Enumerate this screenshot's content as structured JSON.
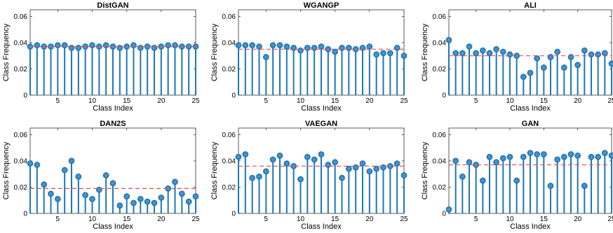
{
  "chart_data": [
    {
      "type": "stem",
      "title": "DistGAN",
      "xlabel": "Class Index",
      "ylabel": "Class Frequency",
      "xlim": [
        1,
        25
      ],
      "ylim": [
        0,
        0.065
      ],
      "xticks": [
        5,
        10,
        15,
        20,
        25
      ],
      "yticks": [
        0,
        0.02,
        0.04,
        0.06
      ],
      "ytick_labels": [
        "0",
        "0.02",
        "0.04",
        "0.06"
      ],
      "reference_line": 0.037,
      "x": [
        1,
        2,
        3,
        4,
        5,
        6,
        7,
        8,
        9,
        10,
        11,
        12,
        13,
        14,
        15,
        16,
        17,
        18,
        19,
        20,
        21,
        22,
        23,
        24,
        25
      ],
      "values": [
        0.037,
        0.038,
        0.037,
        0.037,
        0.038,
        0.038,
        0.036,
        0.036,
        0.037,
        0.038,
        0.037,
        0.038,
        0.037,
        0.036,
        0.037,
        0.038,
        0.036,
        0.037,
        0.036,
        0.037,
        0.038,
        0.038,
        0.037,
        0.037,
        0.037
      ]
    },
    {
      "type": "stem",
      "title": "WGANGP",
      "xlabel": "Class Index",
      "ylabel": "Class Frequency",
      "xlim": [
        1,
        25
      ],
      "ylim": [
        0,
        0.065
      ],
      "xticks": [
        5,
        10,
        15,
        20,
        25
      ],
      "yticks": [
        0,
        0.02,
        0.04,
        0.06
      ],
      "ytick_labels": [
        "0",
        "0.02",
        "0.04",
        "0.06"
      ],
      "reference_line": 0.035,
      "x": [
        1,
        2,
        3,
        4,
        5,
        6,
        7,
        8,
        9,
        10,
        11,
        12,
        13,
        14,
        15,
        16,
        17,
        18,
        19,
        20,
        21,
        22,
        23,
        24,
        25
      ],
      "values": [
        0.038,
        0.038,
        0.038,
        0.037,
        0.029,
        0.038,
        0.038,
        0.037,
        0.036,
        0.034,
        0.036,
        0.036,
        0.037,
        0.035,
        0.033,
        0.036,
        0.036,
        0.035,
        0.036,
        0.037,
        0.031,
        0.032,
        0.032,
        0.036,
        0.03
      ]
    },
    {
      "type": "stem",
      "title": "ALI",
      "xlabel": "Class Index",
      "ylabel": "Class Frequency",
      "xlim": [
        1,
        25
      ],
      "ylim": [
        0,
        0.065
      ],
      "xticks": [
        5,
        10,
        15,
        20,
        25
      ],
      "yticks": [
        0,
        0.02,
        0.04,
        0.06
      ],
      "ytick_labels": [
        "0",
        "0.02",
        "0.04",
        "0.06"
      ],
      "reference_line": 0.03,
      "x": [
        1,
        2,
        3,
        4,
        5,
        6,
        7,
        8,
        9,
        10,
        11,
        12,
        13,
        14,
        15,
        16,
        17,
        18,
        19,
        20,
        21,
        22,
        23,
        24,
        25
      ],
      "values": [
        0.042,
        0.032,
        0.032,
        0.037,
        0.032,
        0.034,
        0.032,
        0.035,
        0.033,
        0.031,
        0.03,
        0.014,
        0.017,
        0.028,
        0.021,
        0.029,
        0.033,
        0.021,
        0.029,
        0.023,
        0.034,
        0.031,
        0.031,
        0.032,
        0.024
      ]
    },
    {
      "type": "stem",
      "title": "DAN2S",
      "xlabel": "Class Index",
      "ylabel": "Class Frequency",
      "xlim": [
        1,
        25
      ],
      "ylim": [
        0,
        0.065
      ],
      "xticks": [
        5,
        10,
        15,
        20,
        25
      ],
      "yticks": [
        0,
        0.02,
        0.04,
        0.06
      ],
      "ytick_labels": [
        "0",
        "0.02",
        "0.04",
        "0.06"
      ],
      "reference_line": 0.019,
      "x": [
        1,
        2,
        3,
        4,
        5,
        6,
        7,
        8,
        9,
        10,
        11,
        12,
        13,
        14,
        15,
        16,
        17,
        18,
        19,
        20,
        21,
        22,
        23,
        24,
        25
      ],
      "values": [
        0.038,
        0.037,
        0.022,
        0.015,
        0.011,
        0.033,
        0.04,
        0.028,
        0.014,
        0.011,
        0.018,
        0.029,
        0.023,
        0.006,
        0.013,
        0.008,
        0.011,
        0.009,
        0.008,
        0.012,
        0.019,
        0.024,
        0.015,
        0.009,
        0.013
      ]
    },
    {
      "type": "stem",
      "title": "VAEGAN",
      "xlabel": "Class Index",
      "ylabel": "Class Frequency",
      "xlim": [
        1,
        25
      ],
      "ylim": [
        0,
        0.065
      ],
      "xticks": [
        5,
        10,
        15,
        20,
        25
      ],
      "yticks": [
        0,
        0.02,
        0.04,
        0.06
      ],
      "ytick_labels": [
        "0",
        "0.02",
        "0.04",
        "0.06"
      ],
      "reference_line": 0.036,
      "x": [
        1,
        2,
        3,
        4,
        5,
        6,
        7,
        8,
        9,
        10,
        11,
        12,
        13,
        14,
        15,
        16,
        17,
        18,
        19,
        20,
        21,
        22,
        23,
        24,
        25
      ],
      "values": [
        0.043,
        0.045,
        0.027,
        0.028,
        0.032,
        0.041,
        0.044,
        0.038,
        0.036,
        0.026,
        0.043,
        0.041,
        0.045,
        0.037,
        0.039,
        0.027,
        0.034,
        0.035,
        0.038,
        0.032,
        0.034,
        0.035,
        0.036,
        0.038,
        0.029
      ]
    },
    {
      "type": "stem",
      "title": "GAN",
      "xlabel": "Class Index",
      "ylabel": "Class Frequency",
      "xlim": [
        1,
        25
      ],
      "ylim": [
        0,
        0.065
      ],
      "xticks": [
        5,
        10,
        15,
        20,
        25
      ],
      "yticks": [
        0,
        0.02,
        0.04,
        0.06
      ],
      "ytick_labels": [
        "0",
        "0.02",
        "0.04",
        "0.06"
      ],
      "reference_line": 0.037,
      "x": [
        1,
        2,
        3,
        4,
        5,
        6,
        7,
        8,
        9,
        10,
        11,
        12,
        13,
        14,
        15,
        16,
        17,
        18,
        19,
        20,
        21,
        22,
        23,
        24,
        25
      ],
      "values": [
        0.003,
        0.04,
        0.028,
        0.039,
        0.037,
        0.025,
        0.043,
        0.039,
        0.042,
        0.043,
        0.025,
        0.043,
        0.046,
        0.045,
        0.045,
        0.021,
        0.041,
        0.043,
        0.045,
        0.044,
        0.021,
        0.043,
        0.043,
        0.046,
        0.044
      ]
    }
  ],
  "style": {
    "stem_color": "#1f77b4",
    "marker_fill": "#4a90c8",
    "reference_line_color": "#e64d4d",
    "axis_color": "#333333",
    "font_color": "#000000"
  }
}
